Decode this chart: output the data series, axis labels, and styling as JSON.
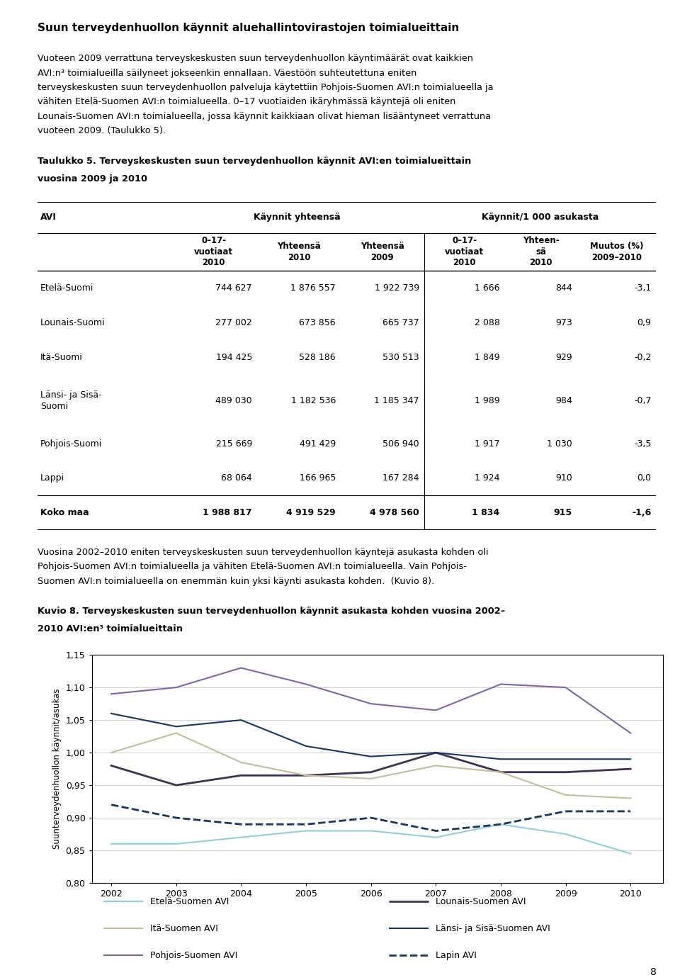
{
  "title": "Suun terveydenhuollon käynnit aluehallintovirastojen toimialueittain",
  "paragraph1_lines": [
    "Vuoteen 2009 verrattuna terveyskeskusten suun terveydenhuollon käyntimäärät ovat kaikkien",
    "AVI:n³ toimialueilla säilyneet jokseenkin ennallaan. Väestöön suhteutettuna eniten",
    "terveyskeskusten suun terveydenhuollon palveluja käytettiin Pohjois-Suomen AVI:n toimialueella ja",
    "vähiten Etelä-Suomen AVI:n toimialueella. 0–17 vuotiaiden ikäryhmässä käyntejä oli eniten",
    "Lounais-Suomen AVI:n toimialueella, jossa käynnit kaikkiaan olivat hieman lisääntyneet verrattuna",
    "vuoteen 2009. (Taulukko 5)."
  ],
  "table_title_lines": [
    "Taulukko 5. Terveyskeskusten suun terveydenhuollon käynnit AVI:en toimialueittain",
    "vuosina 2009 ja 2010"
  ],
  "table_rows": [
    [
      "Etelä-Suomi",
      "744 627",
      "1 876 557",
      "1 922 739",
      "1 666",
      "844",
      "-3,1"
    ],
    [
      "Lounais-Suomi",
      "277 002",
      "673 856",
      "665 737",
      "2 088",
      "973",
      "0,9"
    ],
    [
      "Itä-Suomi",
      "194 425",
      "528 186",
      "530 513",
      "1 849",
      "929",
      "-0,2"
    ],
    [
      "Länsi- ja Sisä-\nSuomi",
      "489 030",
      "1 182 536",
      "1 185 347",
      "1 989",
      "984",
      "-0,7"
    ],
    [
      "Pohjois-Suomi",
      "215 669",
      "491 429",
      "506 940",
      "1 917",
      "1 030",
      "-3,5"
    ],
    [
      "Lappi",
      "68 064",
      "166 965",
      "167 284",
      "1 924",
      "910",
      "0,0"
    ],
    [
      "Koko maa",
      "1 988 817",
      "4 919 529",
      "4 978 560",
      "1 834",
      "915",
      "-1,6"
    ]
  ],
  "paragraph2_lines": [
    "Vuosina 2002–2010 eniten terveyskeskusten suun terveydenhuollon käyntejä asukasta kohden oli",
    "Pohjois-Suomen AVI:n toimialueella ja vähiten Etelä-Suomen AVI:n toimialueella. Vain Pohjois-",
    "Suomen AVI:n toimialueella on enemmän kuin yksi käynti asukasta kohden.  (Kuvio 8)."
  ],
  "chart_title_lines": [
    "Kuvio 8. Terveyskeskusten suun terveydenhuollon käynnit asukasta kohden vuosina 2002–",
    "2010 AVI:en³ toimialueittain"
  ],
  "years": [
    2002,
    2003,
    2004,
    2005,
    2006,
    2007,
    2008,
    2009,
    2010
  ],
  "series_names": [
    "Etelä-Suomen AVI",
    "Lounais-Suomen AVI",
    "Itä-Suomen AVI",
    "Länsi- ja Sisä-Suomen AVI",
    "Pohjois-Suomen AVI",
    "Lapin AVI"
  ],
  "series_values": [
    [
      0.86,
      0.86,
      0.87,
      0.88,
      0.88,
      0.87,
      0.89,
      0.875,
      0.845
    ],
    [
      0.98,
      0.95,
      0.965,
      0.965,
      0.97,
      1.0,
      0.97,
      0.97,
      0.975
    ],
    [
      1.0,
      1.03,
      0.985,
      0.965,
      0.96,
      0.98,
      0.97,
      0.935,
      0.93
    ],
    [
      1.06,
      1.04,
      1.05,
      1.01,
      0.994,
      1.0,
      0.99,
      0.99,
      0.99
    ],
    [
      1.09,
      1.1,
      1.13,
      1.105,
      1.075,
      1.065,
      1.105,
      1.1,
      1.03
    ],
    [
      0.92,
      0.9,
      0.89,
      0.89,
      0.9,
      0.88,
      0.89,
      0.91,
      0.91
    ]
  ],
  "series_colors": [
    "#92CDDC",
    "#403151",
    "#C4BD97",
    "#17375E",
    "#8064A2",
    "#17375E"
  ],
  "series_linestyles": [
    "-",
    "-",
    "-",
    "-",
    "-",
    "--"
  ],
  "series_linewidths": [
    1.5,
    2.0,
    1.5,
    1.5,
    1.5,
    2.0
  ],
  "ylabel": "Suunterveydenhuollon käynnit/asukas",
  "ylim": [
    0.8,
    1.15
  ],
  "ytick_values": [
    0.8,
    0.85,
    0.9,
    0.95,
    1.0,
    1.05,
    1.1,
    1.15
  ],
  "ytick_labels": [
    "0,80",
    "0,85",
    "0,90",
    "0,95",
    "1,00",
    "1,05",
    "1,10",
    "1,15"
  ],
  "page_number": "8",
  "bg_color": "#ffffff"
}
